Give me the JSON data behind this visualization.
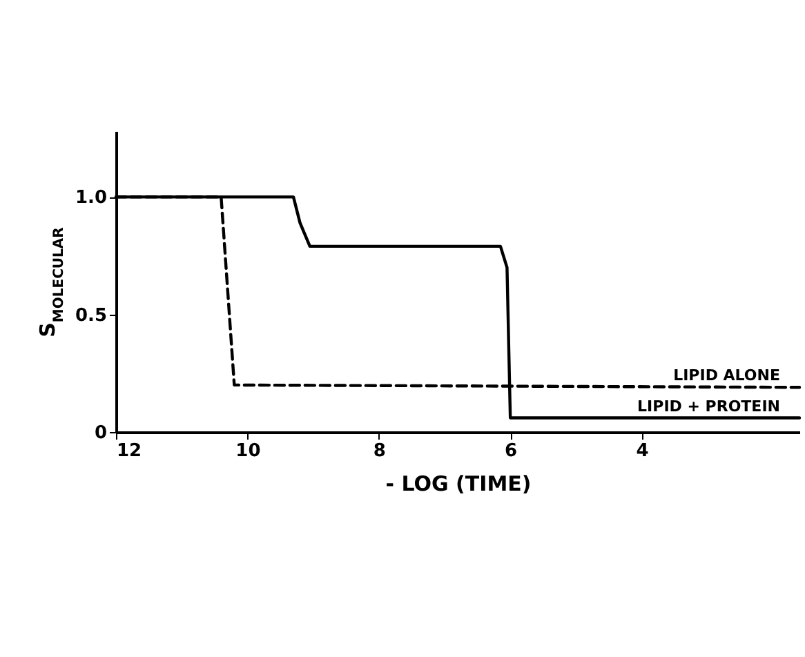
{
  "chart_data": {
    "type": "line",
    "xlabel": "- LOG (TIME)",
    "ylabel": "S$_{MOLECULAR}$",
    "xlim": [
      12,
      1.6
    ],
    "ylim": [
      0,
      1.28
    ],
    "xticks": [
      12,
      10,
      8,
      6,
      4
    ],
    "yticks": [
      0,
      {
        "value": 0.5,
        "label": "0.5"
      },
      {
        "value": 1,
        "label": "1.0"
      }
    ],
    "series": [
      {
        "name": "LIPID ALONE",
        "color": "#000000",
        "line_style": "dashed",
        "x": [
          12,
          10.4,
          10.3,
          10.2,
          1.6
        ],
        "values": [
          1.0,
          1.0,
          0.6,
          0.2,
          0.19
        ]
      },
      {
        "name": "LIPID + PROTEIN",
        "color": "#000000",
        "line_style": "solid",
        "x": [
          12,
          9.3,
          9.2,
          9.05,
          6.15,
          6.05,
          6.0,
          1.6
        ],
        "values": [
          1.0,
          1.0,
          0.89,
          0.79,
          0.79,
          0.7,
          0.06,
          0.06
        ]
      }
    ]
  }
}
